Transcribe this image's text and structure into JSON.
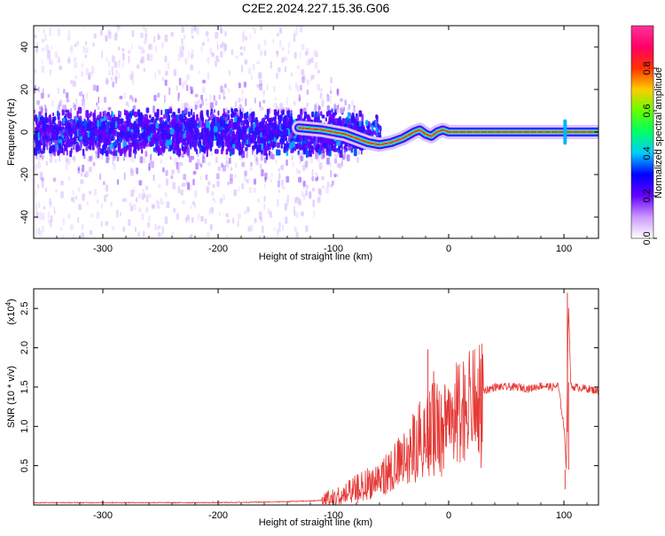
{
  "title": "C2E2.2024.227.15.36.G06",
  "chart_data": [
    {
      "type": "heatmap",
      "xlabel": "Height of straight line (km)",
      "ylabel": "Frequency (Hz)",
      "xlim": [
        -360,
        130
      ],
      "ylim": [
        -50,
        50
      ],
      "xticks": [
        -300,
        -200,
        -100,
        0,
        100
      ],
      "yticks": [
        -40,
        -20,
        0,
        20,
        40
      ],
      "colorbar": {
        "label": "Normalized spectral amplitude",
        "range": [
          0,
          1
        ],
        "ticks": [
          0.0,
          0.2,
          0.4,
          0.6,
          0.8
        ],
        "colors": [
          "#ffffff",
          "#cc99ff",
          "#6600ff",
          "#0000ff",
          "#00ccff",
          "#00ff66",
          "#66ff00",
          "#ffcc00",
          "#ff3300",
          "#ff0066",
          "#ff3399"
        ]
      },
      "ridge": [
        {
          "x": -130,
          "y": 2
        },
        {
          "x": -110,
          "y": 1
        },
        {
          "x": -100,
          "y": 0
        },
        {
          "x": -90,
          "y": -1
        },
        {
          "x": -80,
          "y": -3
        },
        {
          "x": -70,
          "y": -5
        },
        {
          "x": -60,
          "y": -6
        },
        {
          "x": -50,
          "y": -5
        },
        {
          "x": -40,
          "y": -3
        },
        {
          "x": -30,
          "y": 0
        },
        {
          "x": -25,
          "y": 1
        },
        {
          "x": -20,
          "y": -1
        },
        {
          "x": -15,
          "y": -2
        },
        {
          "x": -10,
          "y": 0
        },
        {
          "x": -5,
          "y": 1
        },
        {
          "x": 0,
          "y": 0
        },
        {
          "x": 50,
          "y": 0
        },
        {
          "x": 100,
          "y": 0
        },
        {
          "x": 130,
          "y": 0
        }
      ]
    },
    {
      "type": "line",
      "xlabel": "Height of straight line (km)",
      "ylabel": "SNR (10 * v/v)",
      "yscale_label": "(x10",
      "yscale_exp": "4",
      "xlim": [
        -360,
        130
      ],
      "ylim": [
        0,
        2.75
      ],
      "xticks": [
        -300,
        -200,
        -100,
        0,
        100
      ],
      "yticks": [
        "0.5",
        "1.0",
        "1.5",
        "2.0",
        "2.5"
      ],
      "color": "#e53935",
      "series": [
        {
          "x": [
            -360,
            -300,
            -250,
            -200,
            -150,
            -120,
            -100,
            -90,
            -80,
            -70,
            -60,
            -50,
            -40,
            -30,
            -20,
            -10,
            0,
            10,
            20,
            30,
            40,
            50,
            60,
            70,
            80,
            90,
            95,
            100,
            102,
            104,
            106,
            110,
            120,
            130
          ],
          "y": [
            0.03,
            0.03,
            0.03,
            0.03,
            0.04,
            0.05,
            0.07,
            0.12,
            0.2,
            0.28,
            0.35,
            0.45,
            0.6,
            0.8,
            1.0,
            1.1,
            1.2,
            1.3,
            1.38,
            1.45,
            1.5,
            1.5,
            1.5,
            1.48,
            1.52,
            1.5,
            1.52,
            1.0,
            0.5,
            2.6,
            1.5,
            1.5,
            1.48,
            1.45
          ]
        }
      ],
      "spikes": [
        {
          "x": -18,
          "y": 1.98
        },
        {
          "x": -13,
          "y": 1.7
        },
        {
          "x": 101,
          "y": 0.2
        },
        {
          "x": 103,
          "y": 2.7
        },
        {
          "x": 104,
          "y": 0.45
        }
      ]
    }
  ]
}
